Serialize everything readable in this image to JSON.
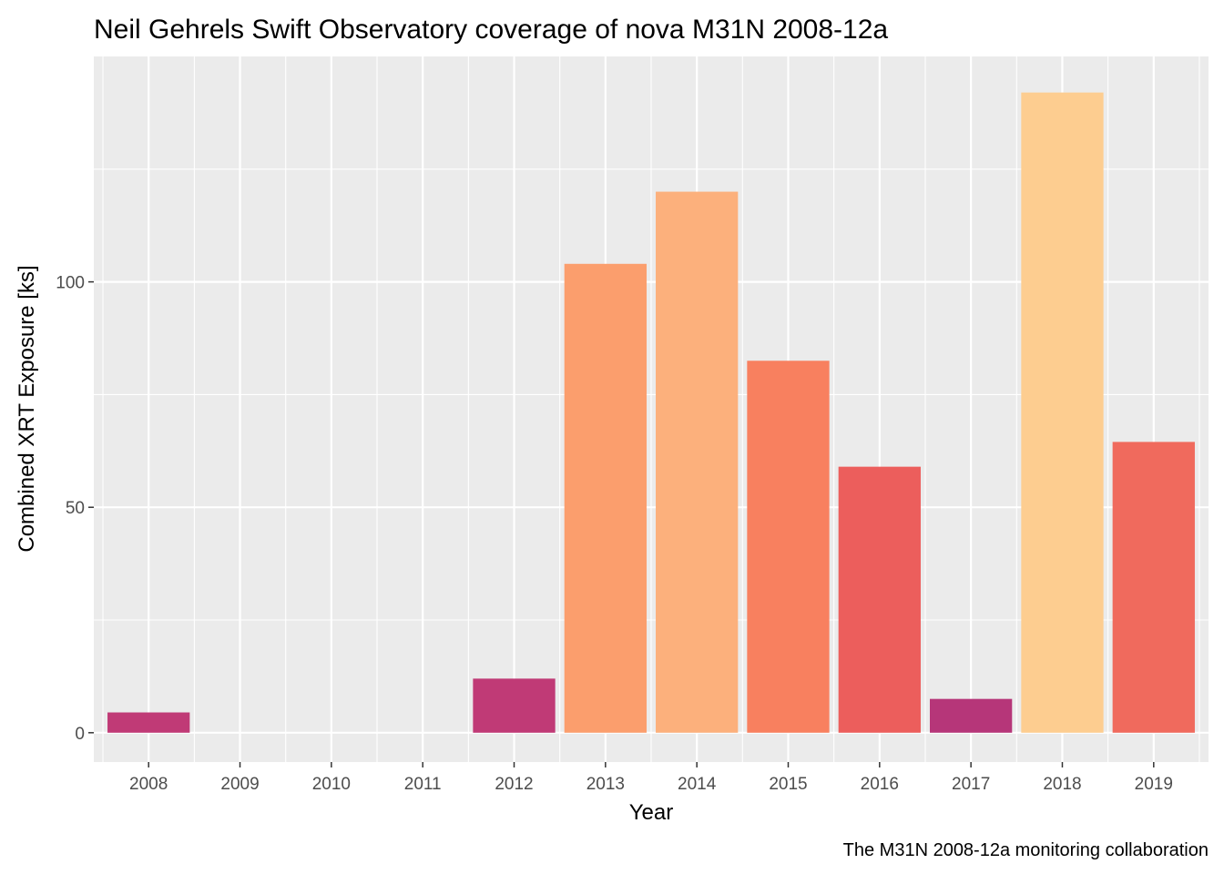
{
  "chart_data": {
    "type": "bar",
    "title": "Neil Gehrels Swift Observatory coverage of nova M31N 2008-12a",
    "xlabel": "Year",
    "ylabel": "Combined XRT Exposure [ks]",
    "caption": "The M31N 2008-12a monitoring collaboration",
    "categories": [
      "2008",
      "2009",
      "2010",
      "2011",
      "2012",
      "2013",
      "2014",
      "2015",
      "2016",
      "2017",
      "2018",
      "2019"
    ],
    "values": [
      4.5,
      0,
      0,
      0,
      12,
      104,
      120,
      82.5,
      59,
      7.5,
      142,
      64.5
    ],
    "colors": [
      "#c03a76",
      null,
      null,
      null,
      "#c03a76",
      "#fb9e6d",
      "#fcb07c",
      "#f8805f",
      "#ec5e5c",
      "#b63679",
      "#fdcd90",
      "#f06a5d"
    ],
    "yticks": [
      0,
      50,
      100
    ],
    "ylim": [
      -6.5,
      150
    ],
    "xlim": [
      0.4,
      12.6
    ],
    "grid": true,
    "background": "#ebebeb",
    "gridline_color": "#ffffff"
  }
}
